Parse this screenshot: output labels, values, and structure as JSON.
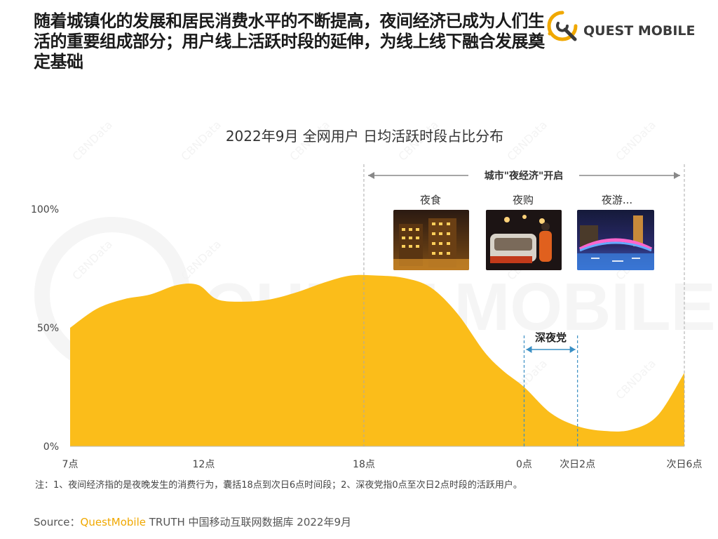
{
  "headline": "随着城镇化的发展和居民消费水平的不断提高，夜间经济已成为人们生活的重要组成部分；用户线上活跃时段的延伸，为线上线下融合发展奠定基础",
  "logo": {
    "text": "QUEST MOBILE",
    "icon": "quest-mobile-logo-icon"
  },
  "note": "注：1、夜间经济指的是夜晚发生的消费行为，囊括18点到次日6点时间段；2、深夜党指0点至次日2点时段的活跃用户。",
  "source": {
    "prefix": "Source：",
    "brand": "QuestMobile",
    "rest": " TRUTH 中国移动互联网数据库 2022年9月"
  },
  "watermark": "CBNData",
  "colors": {
    "area": "#fbbd1a",
    "accent": "#f0a800",
    "dashed_blue": "#3a8fc4",
    "arrow_gray": "#888888"
  },
  "chart_data": {
    "type": "area",
    "title": "2022年9月 全网用户 日均活跃时段占比分布",
    "xlabel": "",
    "ylabel": "",
    "ylim": [
      0,
      100
    ],
    "y_ticks": [
      0,
      50,
      100
    ],
    "y_tick_labels": [
      "0%",
      "50%",
      "100%"
    ],
    "x_range": [
      7,
      30
    ],
    "x_ticks": [
      7,
      12,
      18,
      24,
      26,
      30
    ],
    "x_tick_labels": [
      "7点",
      "12点",
      "18点",
      "0点",
      "次日2点",
      "次日6点"
    ],
    "grid": false,
    "series": [
      {
        "x": [
          7,
          8,
          9,
          10,
          11,
          11.8,
          12.5,
          13.5,
          14.5,
          15.5,
          16.5,
          17.5,
          18.5,
          19.5,
          20.5,
          21.5,
          22.5,
          23.2,
          24,
          25,
          26,
          27,
          28,
          29,
          30
        ],
        "values": [
          50,
          58,
          62,
          64,
          68,
          68,
          62,
          61,
          62,
          65,
          69,
          72,
          72,
          71,
          67,
          56,
          40,
          32,
          25,
          14,
          8.5,
          6.5,
          7,
          13,
          31
        ]
      }
    ],
    "annotations": {
      "night_economy": {
        "label": "城市\"夜经济\"开启",
        "from": 18,
        "to": 30
      },
      "late_night": {
        "label": "深夜党",
        "from": 24,
        "to": 26
      },
      "photo_labels": [
        "夜食",
        "夜购",
        "夜游..."
      ]
    }
  }
}
